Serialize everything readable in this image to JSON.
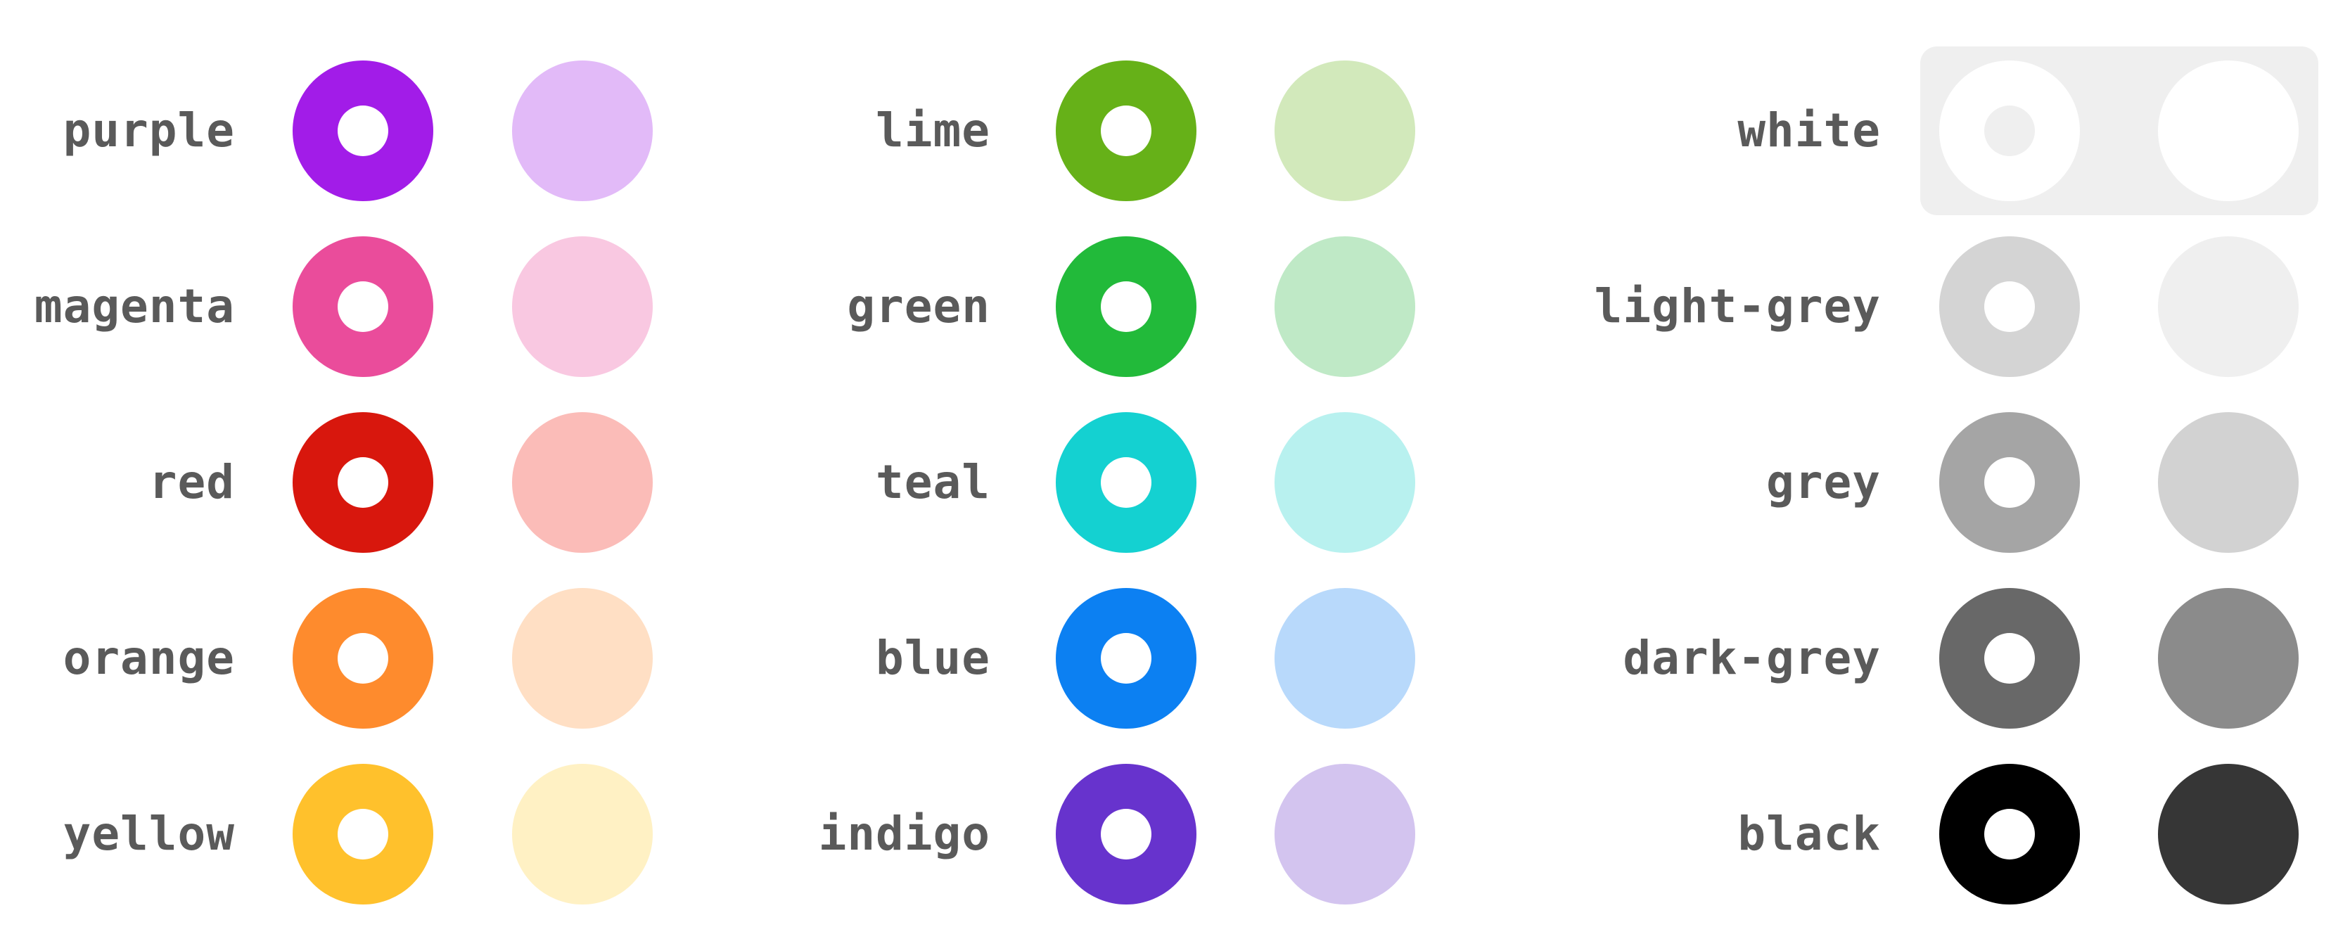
{
  "swatches": [
    {
      "name": "purple",
      "strong": "#a21ce8",
      "light": "#e2baf8"
    },
    {
      "name": "magenta",
      "strong": "#ea4c9b",
      "light": "#f9c8e1"
    },
    {
      "name": "red",
      "strong": "#d8170d",
      "light": "#fbbcb8"
    },
    {
      "name": "orange",
      "strong": "#fe8b2d",
      "light": "#ffdfc4"
    },
    {
      "name": "yellow",
      "strong": "#ffc12c",
      "light": "#fff1c4"
    },
    {
      "name": "lime",
      "strong": "#66b118",
      "light": "#d2e9bb"
    },
    {
      "name": "green",
      "strong": "#22ba3a",
      "light": "#bfe9c6"
    },
    {
      "name": "teal",
      "strong": "#14d1d1",
      "light": "#b8f1ef"
    },
    {
      "name": "blue",
      "strong": "#0c80f2",
      "light": "#b8d9fb"
    },
    {
      "name": "indigo",
      "strong": "#6733cd",
      "light": "#d3c4ef"
    },
    {
      "name": "white",
      "strong": "#ffffff",
      "light": "#ffffff",
      "hole": "#efefef"
    },
    {
      "name": "light-grey",
      "strong": "#d4d4d4",
      "light": "#efefef"
    },
    {
      "name": "grey",
      "strong": "#a5a5a5",
      "light": "#d2d2d2"
    },
    {
      "name": "dark-grey",
      "strong": "#686868",
      "light": "#8b8b8b"
    },
    {
      "name": "black",
      "strong": "#000000",
      "light": "#363636"
    }
  ]
}
